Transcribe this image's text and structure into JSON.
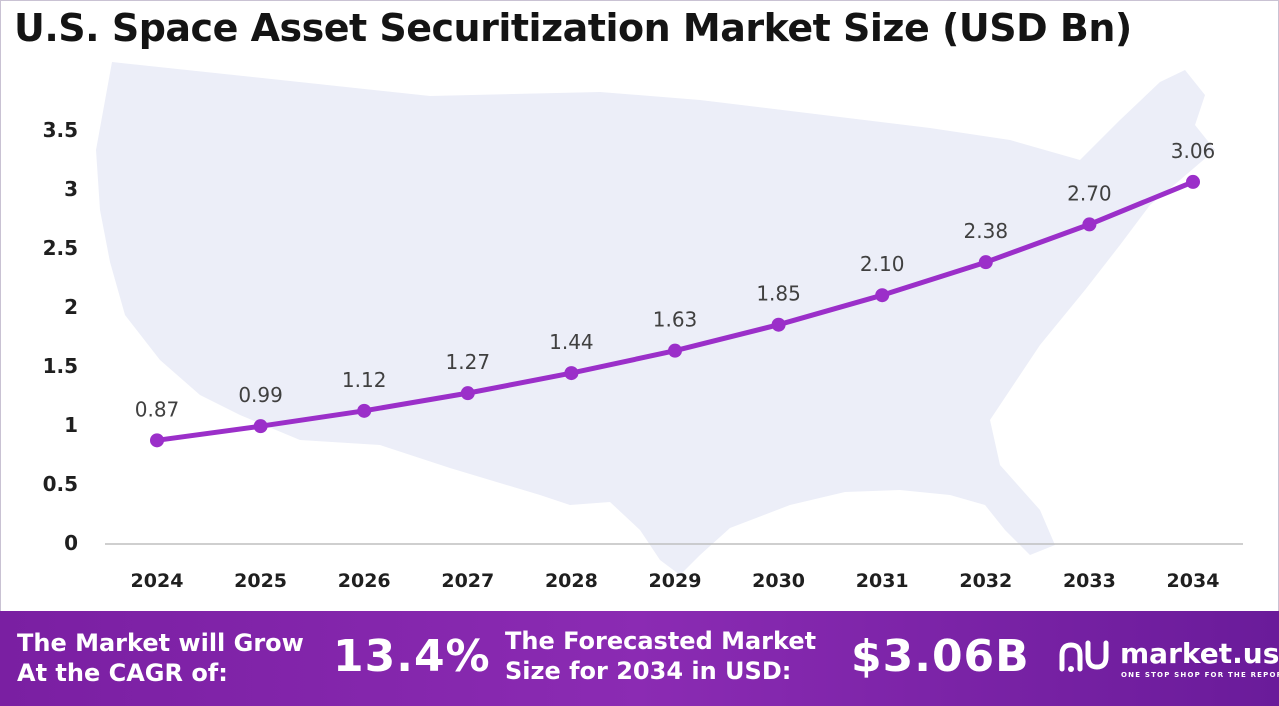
{
  "title": "U.S. Space Asset Securitization Market Size (USD Bn)",
  "colors": {
    "line": "#9b2fc9",
    "footer": "#7b22a6",
    "map": "#eceef8"
  },
  "chart_data": {
    "type": "line",
    "title": "U.S. Space Asset Securitization Market Size (USD Bn)",
    "xlabel": "",
    "ylabel": "",
    "categories": [
      "2024",
      "2025",
      "2026",
      "2027",
      "2028",
      "2029",
      "2030",
      "2031",
      "2032",
      "2033",
      "2034"
    ],
    "series": [
      {
        "values": [
          0.87,
          0.99,
          1.12,
          1.27,
          1.44,
          1.63,
          1.85,
          2.1,
          2.38,
          2.7,
          3.06
        ]
      }
    ],
    "data_labels": [
      "0.87",
      "0.99",
      "1.12",
      "1.27",
      "1.44",
      "1.63",
      "1.85",
      "2.10",
      "2.38",
      "2.70",
      "3.06"
    ],
    "ylim": [
      0,
      3.5
    ],
    "yticks": [
      "0",
      "0.5",
      "1",
      "1.5",
      "2",
      "2.5",
      "3",
      "3.5"
    ],
    "grid": false,
    "legend": "none"
  },
  "footer": {
    "cagr_text": "The Market will Grow\nAt the CAGR of:",
    "cagr_value": "13.4%",
    "forecast_text": "The Forecasted Market\nSize for 2034 in USD:",
    "forecast_value": "$3.06B",
    "brand_name": "market.us",
    "brand_tagline": "ONE STOP SHOP FOR THE REPORTS"
  }
}
